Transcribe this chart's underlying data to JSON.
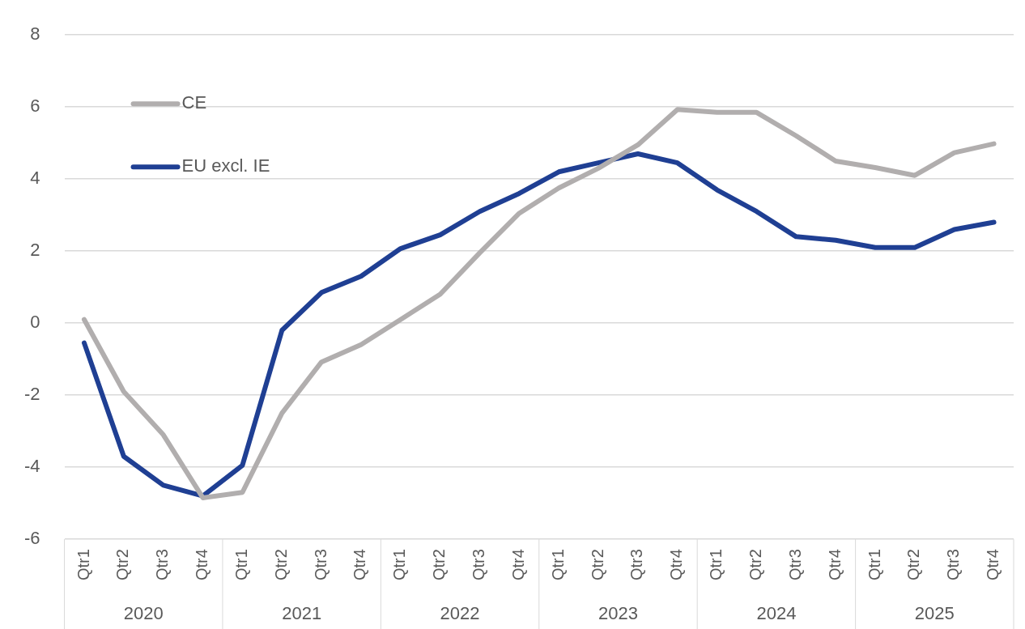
{
  "chart_data": {
    "type": "line",
    "categories": [
      "Qtr1",
      "Qtr2",
      "Qtr3",
      "Qtr4",
      "Qtr1",
      "Qtr2",
      "Qtr3",
      "Qtr4",
      "Qtr1",
      "Qtr2",
      "Qtr3",
      "Qtr4",
      "Qtr1",
      "Qtr2",
      "Qtr3",
      "Qtr4",
      "Qtr1",
      "Qtr2",
      "Qtr3",
      "Qtr4",
      "Qtr1",
      "Qtr2",
      "Qtr3",
      "Qtr4"
    ],
    "series": [
      {
        "name": "CE",
        "color": "#b1aeae",
        "values": [
          0.1,
          -1.9,
          -3.1,
          -4.85,
          -4.7,
          -2.5,
          -1.08,
          -0.6,
          0.1,
          0.8,
          1.95,
          3.05,
          3.75,
          4.3,
          4.95,
          5.93,
          5.85,
          5.85,
          5.2,
          4.5,
          4.32,
          4.1,
          4.73,
          4.98
        ]
      },
      {
        "name": "EU excl. IE",
        "color": "#1f3f93",
        "values": [
          -0.55,
          -3.7,
          -4.5,
          -4.8,
          -3.95,
          -0.2,
          0.85,
          1.3,
          2.07,
          2.45,
          3.1,
          3.6,
          4.2,
          4.45,
          4.7,
          4.45,
          3.7,
          3.1,
          2.4,
          2.3,
          2.1,
          2.1,
          2.6,
          2.8
        ]
      }
    ],
    "annotations": [
      "2020",
      "2021",
      "2022",
      "2023",
      "2024",
      "2025"
    ],
    "ylim": [
      -6,
      8
    ],
    "yticks": [
      -6,
      -4,
      -2,
      0,
      2,
      4,
      6,
      8
    ],
    "grid": "y",
    "legend": "top left",
    "marker": "none",
    "line_style": "solid"
  }
}
